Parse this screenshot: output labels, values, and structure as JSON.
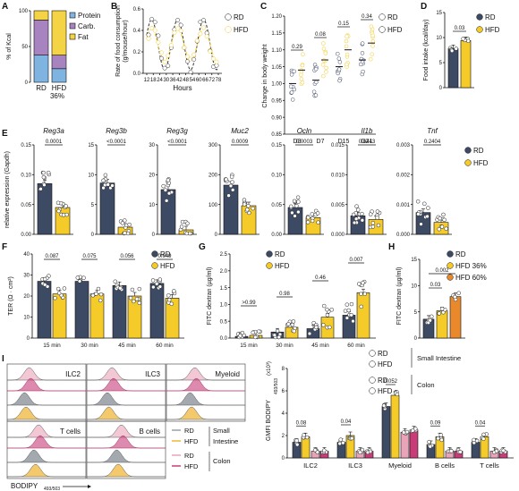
{
  "colors": {
    "rd": "#3d4a63",
    "hfd": "#f5cb2a",
    "hfd60": "#e9892c",
    "protein": "#7fb3e0",
    "carb": "#a783bf",
    "fat": "#f4d345",
    "rd_col": "#e9a4b9",
    "hfd_col": "#c83c78",
    "si_rd_hist": "#9aa0a6",
    "si_hfd_hist": "#f0b73a"
  },
  "legend": {
    "rd": "RD",
    "hfd": "HFD",
    "hfd36": "HFD 36%",
    "hfd60": "HFD 60%"
  },
  "panels": {
    "A": {
      "letter": "A",
      "ylabel": "% of Kcal",
      "xlabels": [
        "RD",
        "HFD"
      ],
      "sub": "36%",
      "legend": [
        "Protein",
        "Carb.",
        "Fat"
      ],
      "stack": [
        {
          "protein": 38,
          "carb": 49,
          "fat": 13
        },
        {
          "protein": 19,
          "carb": 19,
          "fat": 62
        }
      ],
      "yticks": [
        "0",
        "50",
        "100"
      ]
    },
    "B": {
      "letter": "B",
      "ylabel1": "Rate of food consumption",
      "ylabel2": "(g/mouse/hour)",
      "xlabel": "Hours",
      "xticks": [
        "12",
        "18",
        "24",
        "30",
        "36",
        "42",
        "48",
        "54",
        "60",
        "66",
        "72",
        "78"
      ],
      "yticks": [
        "0.0",
        "0.2",
        "0.4",
        "0.6"
      ]
    },
    "C": {
      "letter": "C",
      "ylabel": "Change in body weight",
      "groups": [
        "D3",
        "D7",
        "D15",
        "D21"
      ],
      "pvals": [
        "0.29",
        "0.08",
        "0.15",
        "0.34"
      ],
      "yticks": [
        "0.85",
        "0.90",
        "0.95",
        "1.00",
        "1.05",
        "1.10",
        "1.15",
        "1.20"
      ],
      "means_rd": [
        1.0,
        1.01,
        1.05,
        1.07
      ],
      "means_hfd": [
        1.04,
        1.07,
        1.1,
        1.12
      ]
    },
    "D": {
      "letter": "D",
      "ylabel": "Food intake (kcal/day)",
      "pval": "0.03",
      "yticks": [
        "0",
        "5",
        "10",
        "15"
      ],
      "rd": 7.8,
      "hfd": 9.4
    },
    "E": {
      "letter": "E",
      "ylabel": "relative expression (Gapdh)",
      "genes": [
        {
          "name": "Reg3a",
          "p": "0.0001",
          "yticks": [
            "0.00",
            "0.05",
            "0.10",
            "0.15"
          ],
          "ymax": 0.15,
          "rd": 0.085,
          "hfd": 0.045
        },
        {
          "name": "Reg3b",
          "p": "<0.0001",
          "yticks": [
            "0",
            "5",
            "10",
            "15"
          ],
          "ymax": 15,
          "rd": 8.6,
          "hfd": 1.2
        },
        {
          "name": "Reg3g",
          "p": "<0.0001",
          "yticks": [
            "0",
            "10",
            "20",
            "30"
          ],
          "ymax": 30,
          "rd": 15,
          "hfd": 1.5
        },
        {
          "name": "Muc2",
          "p": "0.0009",
          "yticks": [
            "0",
            "100",
            "200",
            "300"
          ],
          "ymax": 300,
          "rd": 165,
          "hfd": 96
        },
        {
          "name": "Ocln",
          "p": "0.0003",
          "yticks": [
            "0.00",
            "0.05",
            "0.10",
            "0.15"
          ],
          "ymax": 0.15,
          "rd": 0.045,
          "hfd": 0.028
        },
        {
          "name": "Il1b",
          "p": "0.6443",
          "yticks": [
            "0.000",
            "0.005",
            "0.010",
            "0.015"
          ],
          "ymax": 0.015,
          "rd": 0.0031,
          "hfd": 0.0025
        },
        {
          "name": "Tnf",
          "p": "0.2404",
          "yticks": [
            "0.000",
            "0.001",
            "0.002",
            "0.003"
          ],
          "ymax": 0.003,
          "rd": 0.00073,
          "hfd": 0.0004
        }
      ]
    },
    "F": {
      "letter": "F",
      "ylabel": "TER (Ω · cm²)",
      "yticks": [
        "0",
        "10",
        "20",
        "30",
        "40"
      ],
      "groups": [
        "15 min",
        "30 min",
        "45 min",
        "60 min"
      ],
      "pvals": [
        "0.087",
        "0.075",
        "0.056",
        "0.049"
      ],
      "rd": [
        27,
        27,
        25,
        26
      ],
      "hfd": [
        21,
        21,
        20,
        19
      ]
    },
    "G": {
      "letter": "G",
      "ylabel": "FITC dextran (µg/ml)",
      "yticks": [
        "0.0",
        "0.5",
        "1.0",
        "1.5",
        "2.0",
        "2.5"
      ],
      "groups": [
        "15 min",
        "30 min",
        "45 min",
        "60 min"
      ],
      "pvals": [
        ">0.99",
        "0.98",
        "0.46",
        "0.007"
      ],
      "rd": [
        0.05,
        0.18,
        0.28,
        0.68
      ],
      "hfd": [
        0.08,
        0.32,
        0.62,
        1.35
      ]
    },
    "H": {
      "letter": "H",
      "ylabel": "FITC dextran (µg/ml)",
      "yticks": [
        "0",
        "5",
        "10",
        "15"
      ],
      "pvals": [
        "0.03",
        "0.002"
      ],
      "values": [
        3.6,
        5.2,
        7.9
      ]
    },
    "I": {
      "letter": "I",
      "hist_labels": [
        "ILC2",
        "ILC3",
        "Myeloid",
        "T cells",
        "B cells"
      ],
      "hist_legend": {
        "si": "Small Intestine",
        "col": "Colon",
        "si_short": "Small",
        "si_short2": "Intestine"
      },
      "xlabel": "BODIPY",
      "xlabel_sub": "493/503",
      "bar_ylabel": "GMFI BODIPY",
      "bar_ylabel_sub": "493/503",
      "bar_ylabel_exp": "(x10³)",
      "bar_yticks": [
        "0",
        "2",
        "4",
        "6",
        "8"
      ],
      "groups": [
        "ILC2",
        "ILC3",
        "Myeloid",
        "B cells",
        "T cells"
      ],
      "pvals": [
        "0.08",
        "0.04",
        "0.052",
        "0.09",
        "0.04"
      ],
      "si_rd": [
        1.4,
        1.4,
        4.6,
        1.2,
        1.4
      ],
      "si_hfd": [
        1.9,
        2.0,
        5.6,
        1.9,
        1.9
      ],
      "col_rd": [
        0.6,
        0.6,
        2.3,
        0.6,
        0.6
      ],
      "col_hfd": [
        0.6,
        0.6,
        2.5,
        0.6,
        0.6
      ]
    }
  }
}
